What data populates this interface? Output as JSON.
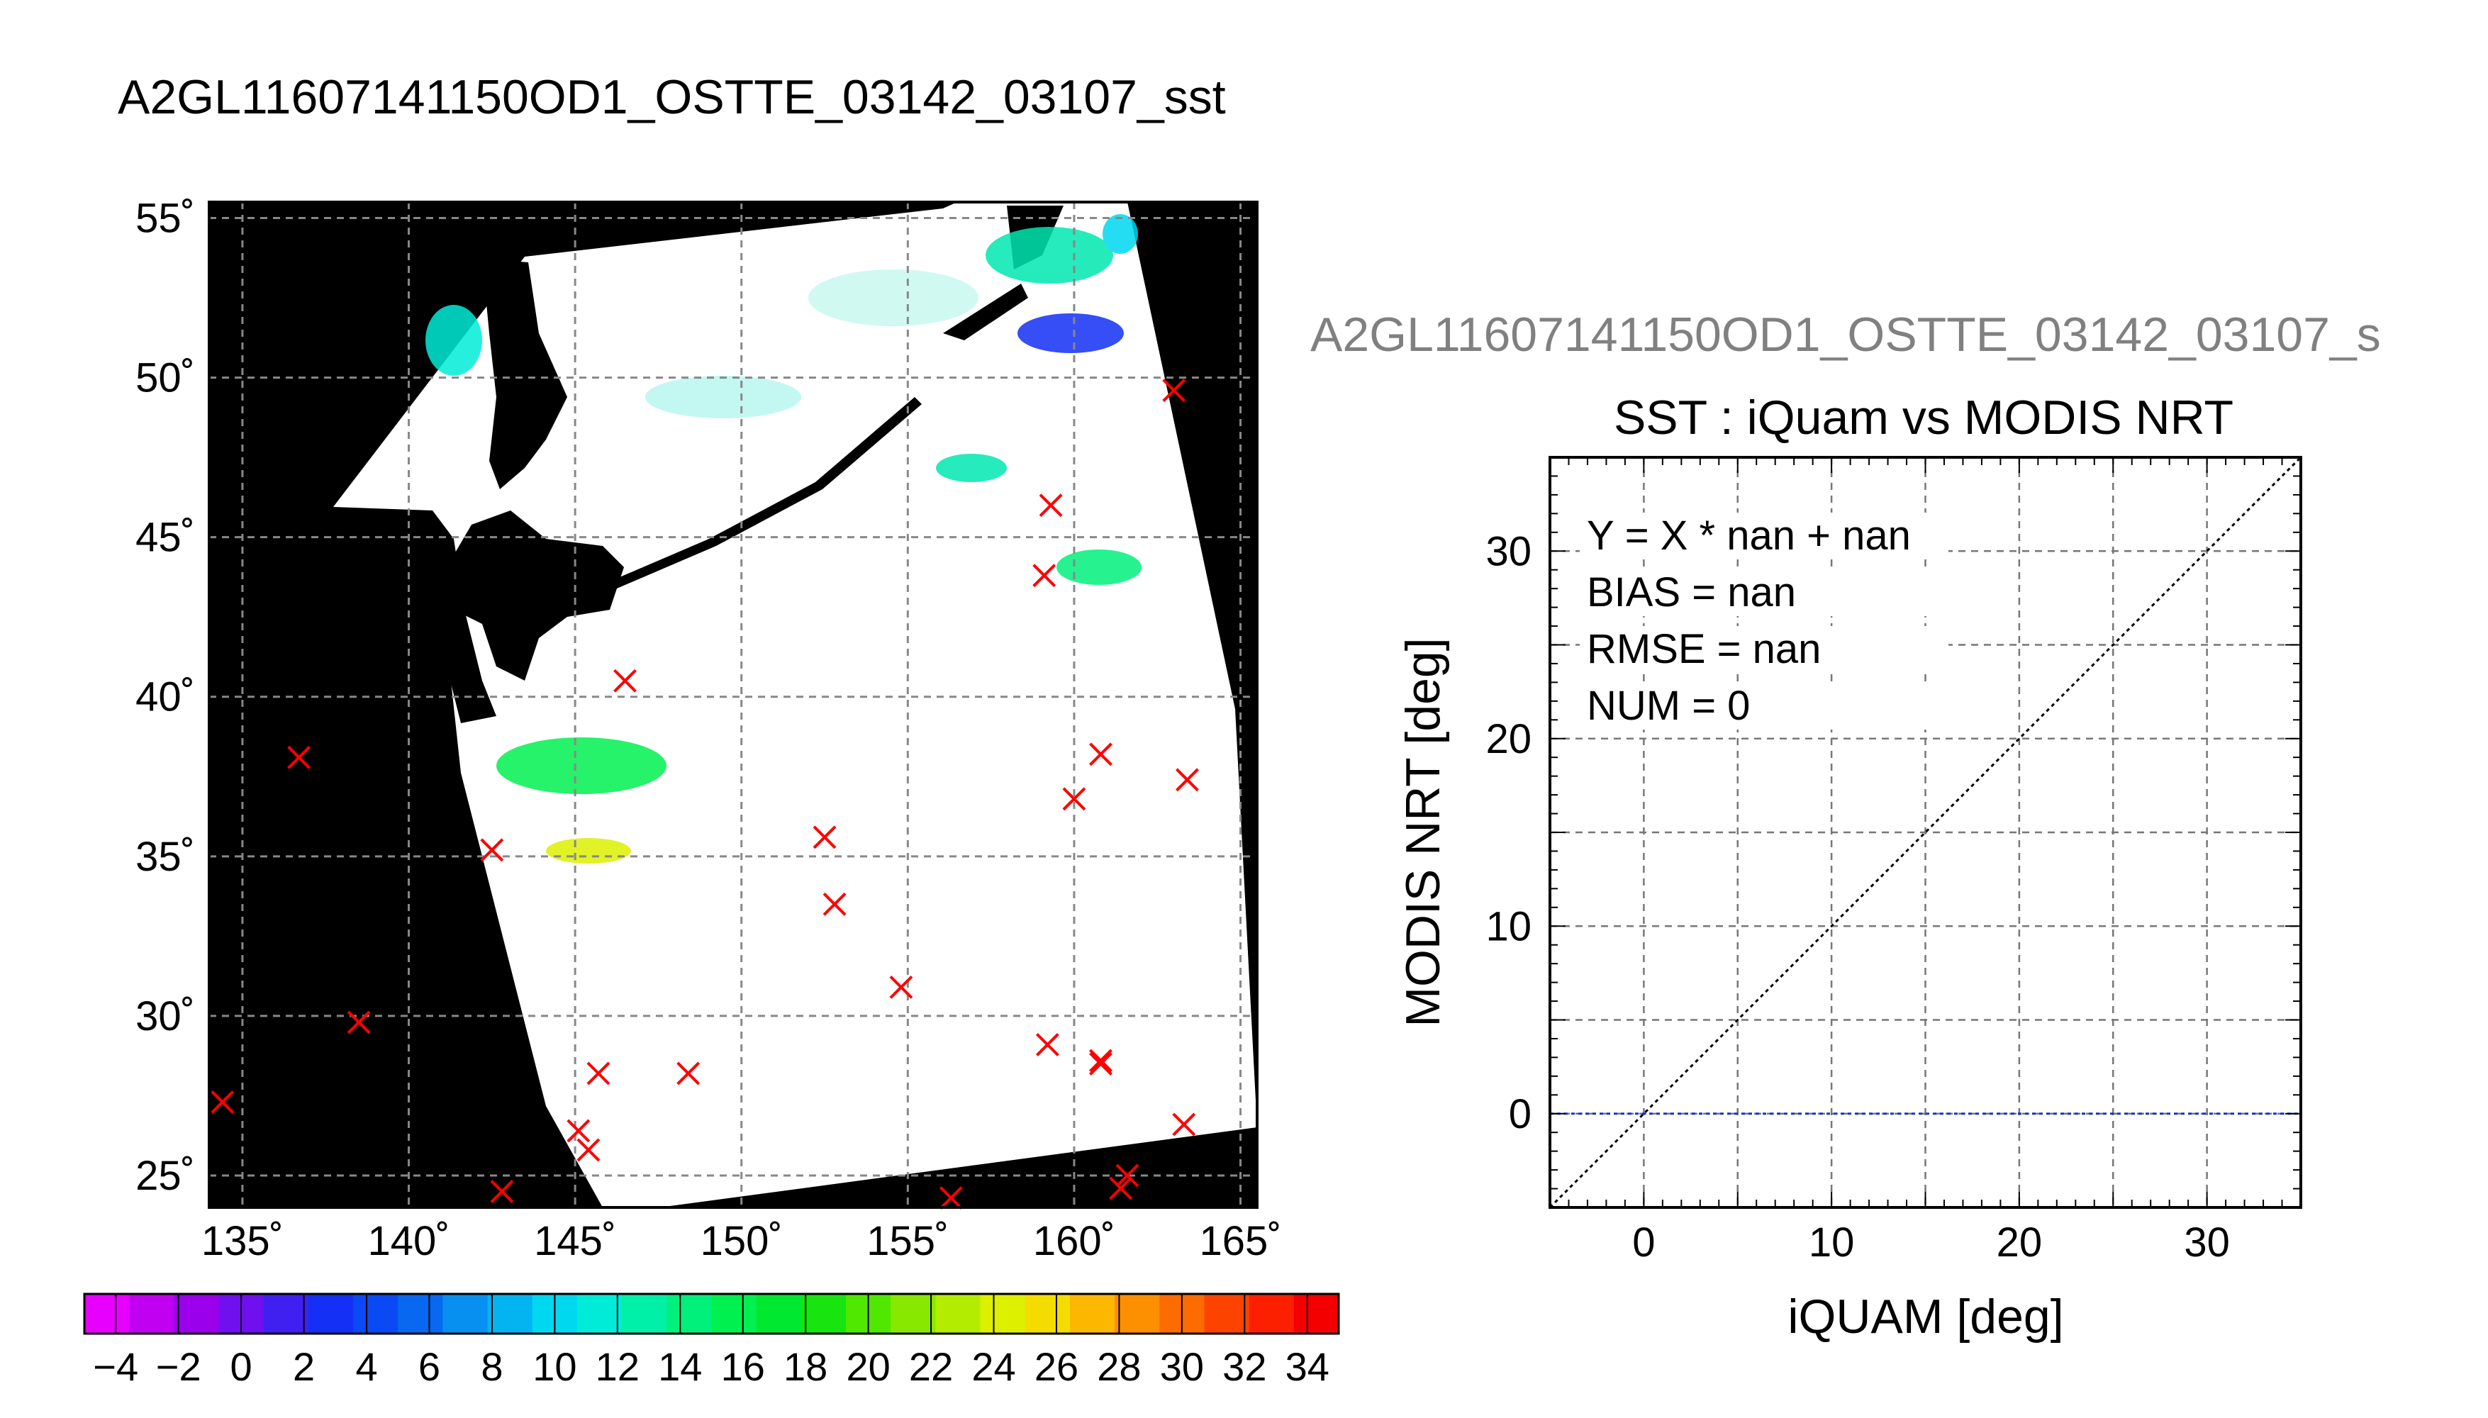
{
  "map_panel": {
    "title": "A2GL11607141150OD1_OSTTE_03142_03107_sst",
    "lon_ticks": [
      "135˚",
      "140˚",
      "145˚",
      "150˚",
      "155˚",
      "160˚",
      "165˚"
    ],
    "lat_ticks": [
      "55˚",
      "50˚",
      "45˚",
      "40˚",
      "35˚",
      "30˚",
      "25˚"
    ],
    "lon_range": [
      134,
      165.5
    ],
    "lat_range": [
      24,
      55.5
    ],
    "grid": true,
    "background_color": "#000000",
    "swath_color": "#ffffff",
    "marker_color": "#ff0000",
    "markers": [
      {
        "lon": 163.0,
        "lat": 49.6
      },
      {
        "lon": 159.3,
        "lat": 46.0
      },
      {
        "lon": 159.1,
        "lat": 43.8
      },
      {
        "lon": 146.5,
        "lat": 40.5
      },
      {
        "lon": 136.7,
        "lat": 38.1
      },
      {
        "lon": 160.8,
        "lat": 38.2
      },
      {
        "lon": 163.4,
        "lat": 37.4
      },
      {
        "lon": 160.0,
        "lat": 36.8
      },
      {
        "lon": 152.5,
        "lat": 35.6
      },
      {
        "lon": 142.5,
        "lat": 35.2
      },
      {
        "lon": 152.8,
        "lat": 33.5
      },
      {
        "lon": 154.8,
        "lat": 30.9
      },
      {
        "lon": 138.5,
        "lat": 29.8
      },
      {
        "lon": 159.2,
        "lat": 29.1
      },
      {
        "lon": 160.8,
        "lat": 28.6
      },
      {
        "lon": 160.8,
        "lat": 28.5
      },
      {
        "lon": 145.7,
        "lat": 28.2
      },
      {
        "lon": 148.4,
        "lat": 28.2
      },
      {
        "lon": 134.4,
        "lat": 27.3
      },
      {
        "lon": 163.3,
        "lat": 26.6
      },
      {
        "lon": 145.1,
        "lat": 26.4
      },
      {
        "lon": 145.4,
        "lat": 25.8
      },
      {
        "lon": 161.6,
        "lat": 25.0
      },
      {
        "lon": 161.4,
        "lat": 24.6
      },
      {
        "lon": 142.8,
        "lat": 24.5
      },
      {
        "lon": 156.3,
        "lat": 24.3
      }
    ]
  },
  "colorbar": {
    "tick_labels": [
      "−4",
      "−2",
      "0",
      "2",
      "4",
      "6",
      "8",
      "10",
      "12",
      "14",
      "16",
      "18",
      "20",
      "22",
      "24",
      "26",
      "28",
      "30",
      "32",
      "34"
    ],
    "range": [
      -5,
      35
    ],
    "colors": [
      "#e800ff",
      "#c000f0",
      "#9a00ea",
      "#7010ee",
      "#4020f0",
      "#1430f5",
      "#0a4af5",
      "#0868f0",
      "#0890f0",
      "#04b4f0",
      "#00d8f0",
      "#00ecd8",
      "#00f0a8",
      "#00f07c",
      "#00f050",
      "#00e830",
      "#18e410",
      "#50e800",
      "#88e800",
      "#b4ec00",
      "#dcf000",
      "#f4dc00",
      "#fcb800",
      "#fc9000",
      "#fc6c00",
      "#fc4400",
      "#fc2000",
      "#f40000"
    ]
  },
  "scatter_panel": {
    "header": "A2GL11607141150OD1_OSTTE_03142_03107_s",
    "header_color": "#808080",
    "diag_line_color": "#000000",
    "zero_line_color": "#2030c0"
  },
  "chart_data": {
    "type": "scatter",
    "title": "SST : iQuam vs MODIS NRT",
    "xlabel": "iQUAM [deg]",
    "ylabel": "MODIS NRT [deg]",
    "xlim": [
      -5,
      35
    ],
    "ylim": [
      -5,
      35
    ],
    "xticks": [
      0,
      10,
      20,
      30
    ],
    "yticks": [
      0,
      10,
      20,
      30
    ],
    "grid": true,
    "points": [],
    "reference_lines": [
      {
        "kind": "identity",
        "style": "dotted"
      },
      {
        "kind": "horizontal",
        "y": 0,
        "style": "dotted"
      }
    ],
    "stats": [
      "Y = X * nan + nan",
      "BIAS = nan",
      "RMSE = nan",
      "NUM = 0"
    ]
  }
}
